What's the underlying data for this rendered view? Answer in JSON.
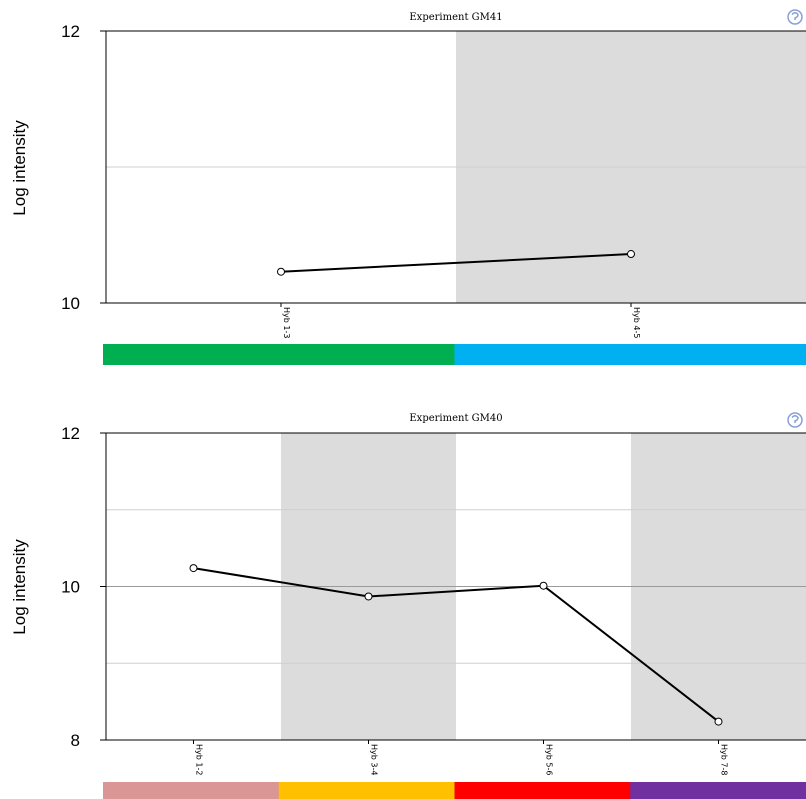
{
  "chart_data": [
    {
      "type": "line",
      "title": "Experiment GM41",
      "ylabel": "Log intensity",
      "xlabel": "",
      "ylim": [
        10,
        12
      ],
      "yticks": [
        10,
        12
      ],
      "grid": true,
      "categories": [
        "Hyb 1-3",
        "Hyb 4-5"
      ],
      "series": [
        {
          "values": [
            10.23,
            10.36
          ]
        }
      ],
      "band_colors": [
        "#00b050",
        "#00b0f0"
      ],
      "icon": "help-icon"
    },
    {
      "type": "line",
      "title": "Experiment GM40",
      "ylabel": "Log intensity",
      "xlabel": "",
      "ylim": [
        8,
        12
      ],
      "yticks": [
        8,
        10,
        12
      ],
      "grid": true,
      "categories": [
        "Hyb 1-2",
        "Hyb 3-4",
        "Hyb 5-6",
        "Hyb 7-8"
      ],
      "series": [
        {
          "values": [
            10.24,
            9.87,
            10.01,
            8.24
          ]
        }
      ],
      "band_colors": [
        "#da9694",
        "#ffc000",
        "#ff0000",
        "#7030a0"
      ],
      "icon": "help-icon"
    }
  ],
  "style": {
    "line_color": "#000000",
    "shade_color": "#dcdcdc",
    "grid_color": "#cfcfcf",
    "icon_color": "#8aa0d8"
  }
}
